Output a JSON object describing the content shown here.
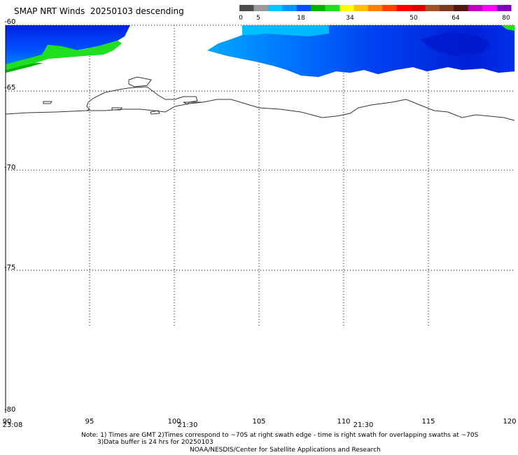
{
  "title": "SMAP NRT Winds  20250103 descending",
  "colorbar": {
    "ticks": [
      "0",
      "5",
      "18",
      "34",
      "50",
      "64",
      "80"
    ],
    "colors": [
      "#4d4d4d",
      "#9a9a9a",
      "#00c8ff",
      "#0096ff",
      "#0050ff",
      "#00b400",
      "#1ee01e",
      "#ffff00",
      "#ffc000",
      "#ff8000",
      "#ff4000",
      "#ff0000",
      "#e00000",
      "#a0522d",
      "#7a3a20",
      "#501810",
      "#c000c0",
      "#ff00ff",
      "#8000c0"
    ]
  },
  "latitude_labels": [
    "-60",
    "-65",
    "-70",
    "-75",
    "-80"
  ],
  "longitude_labels": [
    "90",
    "95",
    "100",
    "105",
    "110",
    "115",
    "120"
  ],
  "swath_times": [
    "23:08",
    "21:30",
    "21:30"
  ],
  "notes": {
    "line1": "Note: 1) Times are GMT 2)Times correspond to ~70S at right swath edge - time is right swath for overlapping swaths at ~70S",
    "line2": "3)Data buffer is 24 hrs for 20250103",
    "credit": "NOAA/NESDIS/Center for Satellite Applications and Research"
  }
}
